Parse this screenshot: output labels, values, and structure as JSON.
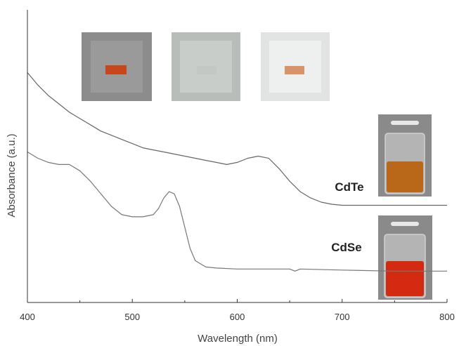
{
  "chart_data": {
    "type": "line",
    "xlabel": "Wavelength (nm)",
    "ylabel": "Absorbance (a.u.)",
    "xlim": [
      400,
      800
    ],
    "ylim": [
      0,
      1.4
    ],
    "xticks": [
      "400",
      "500",
      "600",
      "700",
      "800"
    ],
    "y_tick_labels_shown": false,
    "grid": false,
    "legend": "none",
    "series": [
      {
        "name": "CdTe",
        "color": "#666666",
        "x": [
          400,
          410,
          420,
          430,
          440,
          450,
          460,
          470,
          480,
          490,
          500,
          510,
          520,
          530,
          540,
          550,
          560,
          570,
          580,
          590,
          600,
          610,
          620,
          630,
          640,
          650,
          660,
          670,
          680,
          690,
          700,
          720,
          750,
          800
        ],
        "y": [
          1.1,
          1.04,
          0.99,
          0.95,
          0.91,
          0.88,
          0.85,
          0.82,
          0.8,
          0.78,
          0.76,
          0.74,
          0.73,
          0.72,
          0.71,
          0.7,
          0.69,
          0.68,
          0.67,
          0.66,
          0.67,
          0.69,
          0.7,
          0.69,
          0.64,
          0.58,
          0.53,
          0.5,
          0.48,
          0.47,
          0.465,
          0.465,
          0.465,
          0.465
        ]
      },
      {
        "name": "CdSe",
        "color": "#777777",
        "x": [
          400,
          410,
          420,
          430,
          440,
          450,
          460,
          470,
          480,
          490,
          500,
          510,
          520,
          525,
          530,
          535,
          540,
          545,
          550,
          555,
          560,
          570,
          580,
          600,
          650,
          655,
          660,
          700,
          750,
          800
        ],
        "y": [
          0.72,
          0.69,
          0.67,
          0.66,
          0.66,
          0.63,
          0.58,
          0.52,
          0.46,
          0.42,
          0.41,
          0.41,
          0.42,
          0.45,
          0.5,
          0.53,
          0.52,
          0.46,
          0.36,
          0.26,
          0.2,
          0.17,
          0.165,
          0.16,
          0.16,
          0.15,
          0.16,
          0.155,
          0.15,
          0.15
        ]
      }
    ],
    "annotations": [
      {
        "text": "CdTe",
        "x": 700,
        "y": 0.535
      },
      {
        "text": "CdSe",
        "x": 700,
        "y": 0.24
      }
    ]
  },
  "photo_colors": {
    "film_1_frame": "#8c8c8c",
    "film_1_patch": "#c8461b",
    "film_2_frame": "#b8bdb9",
    "film_2_patch": "#c3c8c4",
    "film_3_frame": "#e2e4e3",
    "film_3_patch": "#d9936b",
    "vial_background": "#8a8a8a",
    "cdte_liquid": "#b86818",
    "cdse_liquid": "#d42a12"
  }
}
